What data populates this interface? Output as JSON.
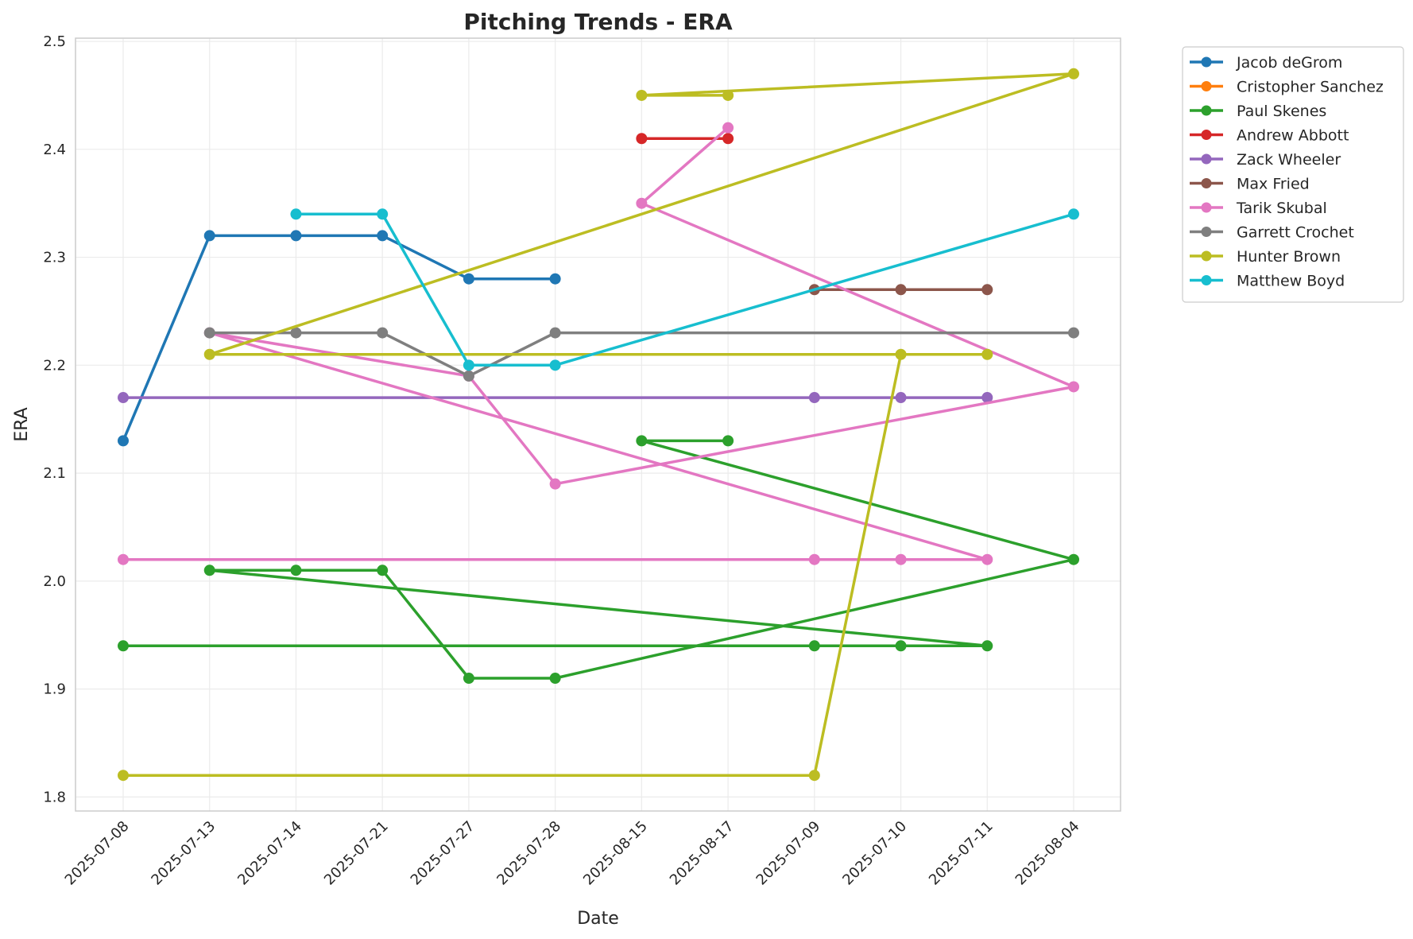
{
  "chart_data": {
    "type": "line",
    "title": "Pitching Trends - ERA",
    "xlabel": "Date",
    "ylabel": "ERA",
    "categories": [
      "2025-07-08",
      "2025-07-13",
      "2025-07-14",
      "2025-07-21",
      "2025-07-27",
      "2025-07-28",
      "2025-08-15",
      "2025-08-17",
      "2025-07-09",
      "2025-07-10",
      "2025-07-11",
      "2025-08-04"
    ],
    "ylim": [
      1.787,
      2.503
    ],
    "yticks": [
      "1.8",
      "1.9",
      "2.0",
      "2.1",
      "2.2",
      "2.3",
      "2.4",
      "2.5"
    ],
    "grid": true,
    "legend_position": "outside-top-right",
    "series": [
      {
        "name": "Jacob deGrom",
        "color": "#1f77b4",
        "points": [
          [
            "2025-07-08",
            2.13
          ],
          [
            "2025-07-13",
            2.32
          ],
          [
            "2025-07-14",
            2.32
          ],
          [
            "2025-07-21",
            2.32
          ],
          [
            "2025-07-27",
            2.28
          ],
          [
            "2025-07-28",
            2.28
          ]
        ]
      },
      {
        "name": "Cristopher Sanchez",
        "color": "#ff7f0e",
        "points": []
      },
      {
        "name": "Paul Skenes",
        "color": "#2ca02c",
        "points": [
          [
            "2025-07-08",
            1.94
          ],
          [
            "2025-07-09",
            1.94
          ],
          [
            "2025-07-10",
            1.94
          ],
          [
            "2025-07-11",
            1.94
          ],
          [
            "2025-07-13",
            2.01
          ],
          [
            "2025-07-14",
            2.01
          ],
          [
            "2025-07-21",
            2.01
          ],
          [
            "2025-07-27",
            1.91
          ],
          [
            "2025-07-28",
            1.91
          ],
          [
            "2025-08-04",
            2.02
          ],
          [
            "2025-08-15",
            2.13
          ],
          [
            "2025-08-17",
            2.13
          ]
        ]
      },
      {
        "name": "Andrew Abbott",
        "color": "#d62728",
        "points": [
          [
            "2025-08-15",
            2.41
          ],
          [
            "2025-08-17",
            2.41
          ]
        ]
      },
      {
        "name": "Zack Wheeler",
        "color": "#9467bd",
        "points": [
          [
            "2025-07-08",
            2.17
          ],
          [
            "2025-07-09",
            2.17
          ],
          [
            "2025-07-10",
            2.17
          ],
          [
            "2025-07-11",
            2.17
          ]
        ]
      },
      {
        "name": "Max Fried",
        "color": "#8c564b",
        "points": [
          [
            "2025-07-09",
            2.27
          ],
          [
            "2025-07-10",
            2.27
          ],
          [
            "2025-07-11",
            2.27
          ]
        ]
      },
      {
        "name": "Tarik Skubal",
        "color": "#e377c2",
        "points": [
          [
            "2025-07-08",
            2.02
          ],
          [
            "2025-07-09",
            2.02
          ],
          [
            "2025-07-10",
            2.02
          ],
          [
            "2025-07-11",
            2.02
          ],
          [
            "2025-07-13",
            2.23
          ],
          [
            "2025-07-27",
            2.19
          ],
          [
            "2025-07-28",
            2.09
          ],
          [
            "2025-08-04",
            2.18
          ],
          [
            "2025-08-15",
            2.35
          ],
          [
            "2025-08-17",
            2.42
          ]
        ]
      },
      {
        "name": "Garrett Crochet",
        "color": "#7f7f7f",
        "points": [
          [
            "2025-07-13",
            2.23
          ],
          [
            "2025-07-14",
            2.23
          ],
          [
            "2025-07-21",
            2.23
          ],
          [
            "2025-07-27",
            2.19
          ],
          [
            "2025-07-28",
            2.23
          ],
          [
            "2025-08-04",
            2.23
          ]
        ]
      },
      {
        "name": "Hunter Brown",
        "color": "#bcbd22",
        "points": [
          [
            "2025-07-08",
            1.82
          ],
          [
            "2025-07-09",
            1.82
          ],
          [
            "2025-07-10",
            2.21
          ],
          [
            "2025-07-11",
            2.21
          ],
          [
            "2025-07-13",
            2.21
          ],
          [
            "2025-08-04",
            2.47
          ],
          [
            "2025-08-15",
            2.45
          ],
          [
            "2025-08-17",
            2.45
          ]
        ]
      },
      {
        "name": "Matthew Boyd",
        "color": "#17becf",
        "points": [
          [
            "2025-07-14",
            2.34
          ],
          [
            "2025-07-21",
            2.34
          ],
          [
            "2025-07-27",
            2.2
          ],
          [
            "2025-07-28",
            2.2
          ],
          [
            "2025-08-04",
            2.34
          ]
        ]
      }
    ]
  }
}
